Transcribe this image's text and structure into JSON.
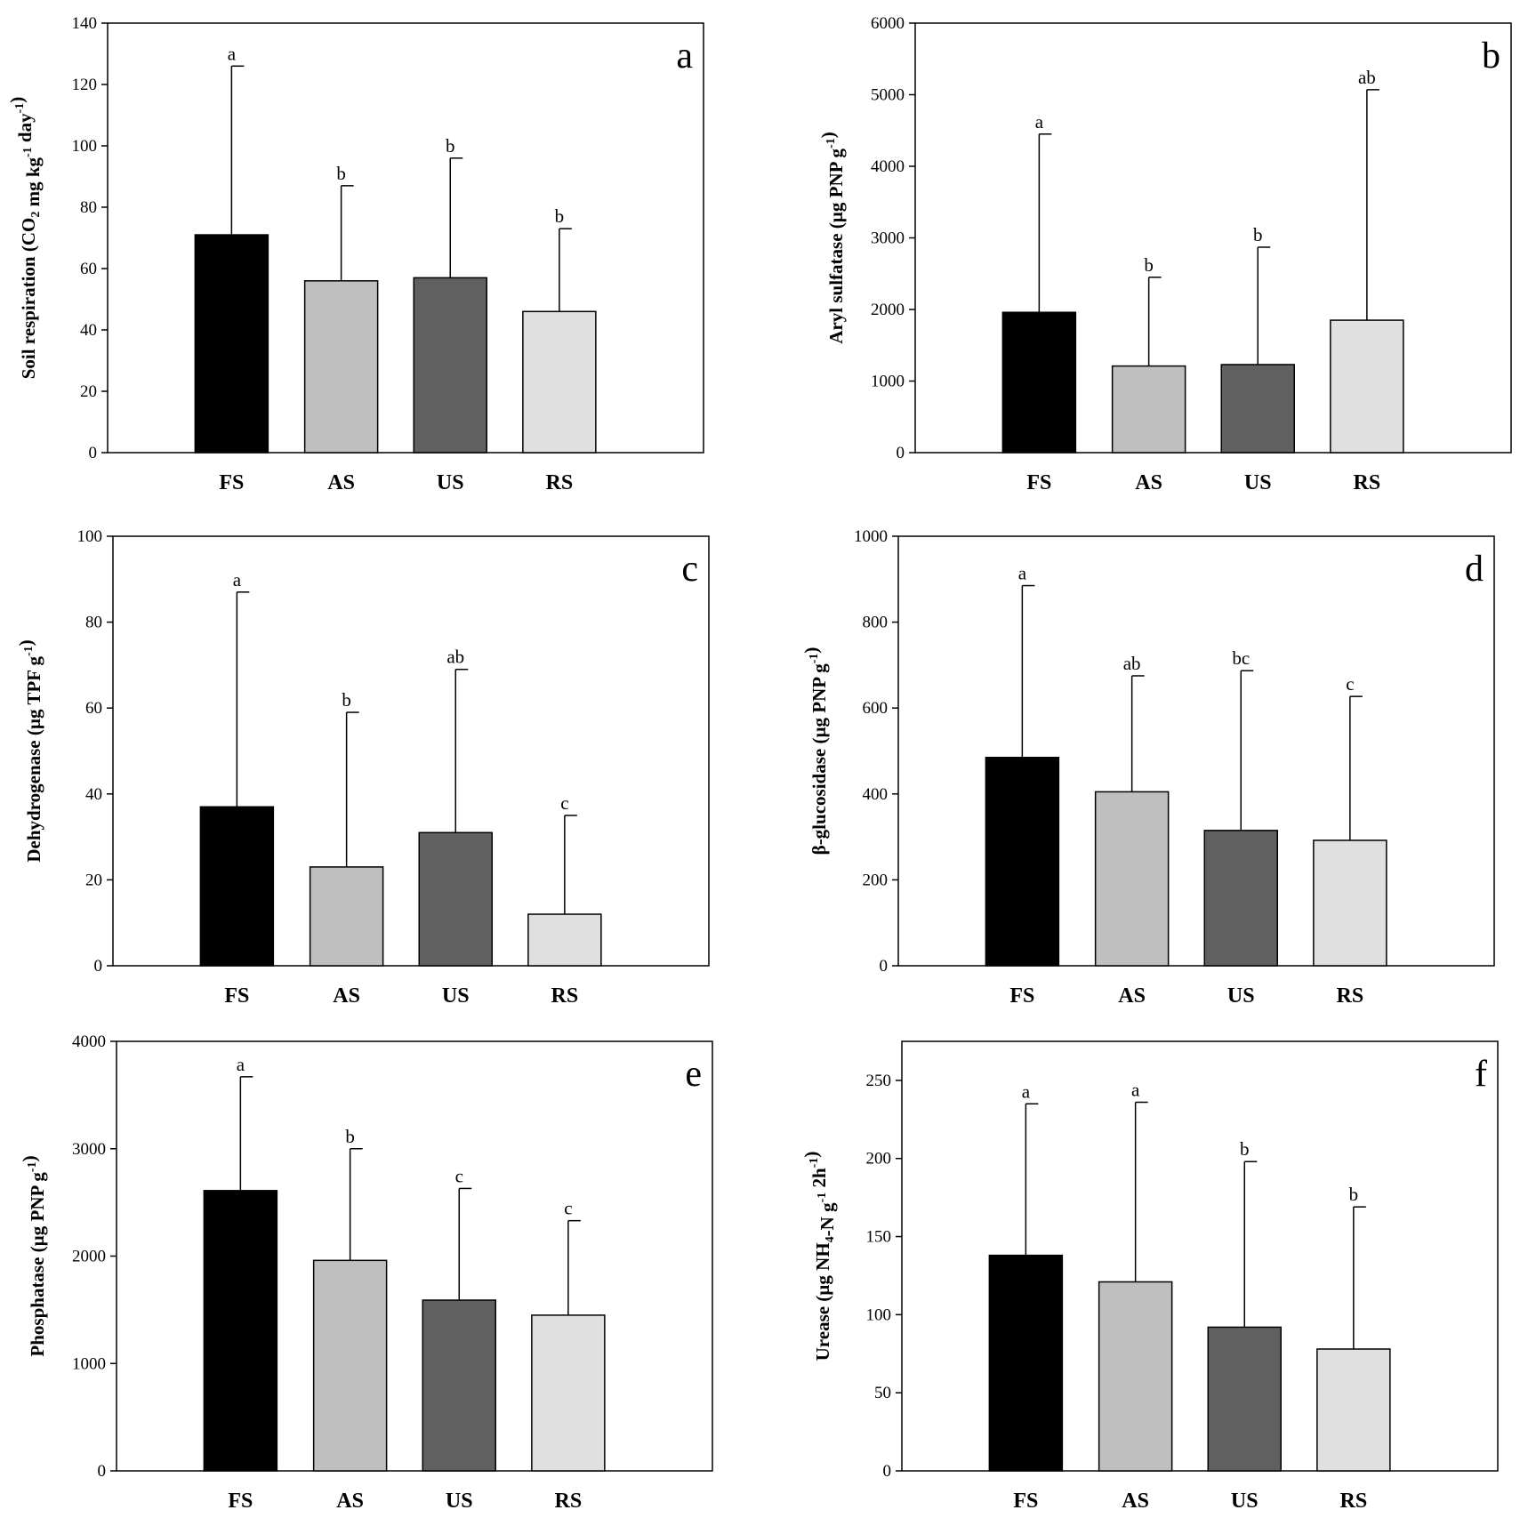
{
  "chart_data": [
    {
      "type": "bar",
      "panel_label": "a",
      "categories": [
        "FS",
        "AS",
        "US",
        "RS"
      ],
      "ylabel": "Soil respiration (CO2 mg kg-1 day-1)",
      "ylabel_parts": [
        {
          "t": "Soil respiration (CO",
          "s": ""
        },
        {
          "t": "2",
          "s": "sub"
        },
        {
          "t": " mg kg",
          "s": ""
        },
        {
          "t": "-1",
          "s": "sup"
        },
        {
          "t": " day",
          "s": ""
        },
        {
          "t": "-1",
          "s": "sup"
        },
        {
          "t": ")",
          "s": ""
        }
      ],
      "ylim": [
        0,
        140
      ],
      "yticks": [
        0,
        20,
        40,
        60,
        80,
        100,
        120,
        140
      ],
      "values": [
        71,
        56,
        57,
        46
      ],
      "errors": [
        55,
        31,
        39,
        27
      ],
      "significance": [
        "a",
        "b",
        "b",
        "b"
      ]
    },
    {
      "type": "bar",
      "panel_label": "b",
      "categories": [
        "FS",
        "AS",
        "US",
        "RS"
      ],
      "ylabel": "Aryl sulfatase (µg PNP g-1)",
      "ylabel_parts": [
        {
          "t": "Aryl sulfatase (µg PNP g",
          "s": ""
        },
        {
          "t": "-1",
          "s": "sup"
        },
        {
          "t": ")",
          "s": ""
        }
      ],
      "ylim": [
        0,
        6000
      ],
      "yticks": [
        0,
        1000,
        2000,
        3000,
        4000,
        5000,
        6000
      ],
      "values": [
        1960,
        1210,
        1230,
        1850
      ],
      "errors": [
        2490,
        1240,
        1640,
        3220
      ],
      "significance": [
        "a",
        "b",
        "b",
        "ab"
      ]
    },
    {
      "type": "bar",
      "panel_label": "c",
      "categories": [
        "FS",
        "AS",
        "US",
        "RS"
      ],
      "ylabel": "Dehydrogenase (µg TPF g-1)",
      "ylabel_parts": [
        {
          "t": "Dehydrogenase (µg TPF g",
          "s": ""
        },
        {
          "t": "-1",
          "s": "sup"
        },
        {
          "t": ")",
          "s": ""
        }
      ],
      "ylim": [
        0,
        100
      ],
      "yticks": [
        0,
        20,
        40,
        60,
        80,
        100
      ],
      "values": [
        37,
        23,
        31,
        12
      ],
      "errors": [
        50,
        36,
        38,
        23
      ],
      "significance": [
        "a",
        "b",
        "ab",
        "c"
      ]
    },
    {
      "type": "bar",
      "panel_label": "d",
      "categories": [
        "FS",
        "AS",
        "US",
        "RS"
      ],
      "ylabel": "β-glucosidase (µg PNP g-1)",
      "ylabel_parts": [
        {
          "t": "β-glucosidase (µg PNP g",
          "s": ""
        },
        {
          "t": "-1",
          "s": "sup"
        },
        {
          "t": ")",
          "s": ""
        }
      ],
      "ylim": [
        0,
        1000
      ],
      "yticks": [
        0,
        200,
        400,
        600,
        800,
        1000
      ],
      "values": [
        485,
        405,
        315,
        292
      ],
      "errors": [
        400,
        270,
        372,
        335
      ],
      "significance": [
        "a",
        "ab",
        "bc",
        "c"
      ]
    },
    {
      "type": "bar",
      "panel_label": "e",
      "categories": [
        "FS",
        "AS",
        "US",
        "RS"
      ],
      "ylabel": "Phosphatase (µg PNP g-1)",
      "ylabel_parts": [
        {
          "t": "Phosphatase (µg PNP g",
          "s": ""
        },
        {
          "t": "-1",
          "s": "sup"
        },
        {
          "t": ")",
          "s": ""
        }
      ],
      "ylim": [
        0,
        4000
      ],
      "yticks": [
        0,
        1000,
        2000,
        3000,
        4000
      ],
      "values": [
        2610,
        1960,
        1590,
        1450
      ],
      "errors": [
        1060,
        1040,
        1040,
        880
      ],
      "significance": [
        "a",
        "b",
        "c",
        "c"
      ]
    },
    {
      "type": "bar",
      "panel_label": "f",
      "categories": [
        "FS",
        "AS",
        "US",
        "RS"
      ],
      "ylabel": "Urease (µg NH4-N g-1 2h-1)",
      "ylabel_parts": [
        {
          "t": "Urease (µg NH",
          "s": ""
        },
        {
          "t": "4",
          "s": "sub"
        },
        {
          "t": "-N g",
          "s": ""
        },
        {
          "t": "-1",
          "s": "sup"
        },
        {
          "t": " 2h",
          "s": ""
        },
        {
          "t": "-1",
          "s": "sup"
        },
        {
          "t": ")",
          "s": ""
        }
      ],
      "ylim": [
        0,
        275
      ],
      "yticks": [
        0,
        50,
        100,
        150,
        200,
        250
      ],
      "values": [
        138,
        121,
        92,
        78
      ],
      "errors": [
        97,
        115,
        106,
        91
      ],
      "significance": [
        "a",
        "a",
        "b",
        "b"
      ]
    }
  ],
  "colors": {
    "bars": [
      "#000000",
      "#bfbfbf",
      "#606060",
      "#e0e0e0"
    ],
    "axes": "#000000"
  }
}
